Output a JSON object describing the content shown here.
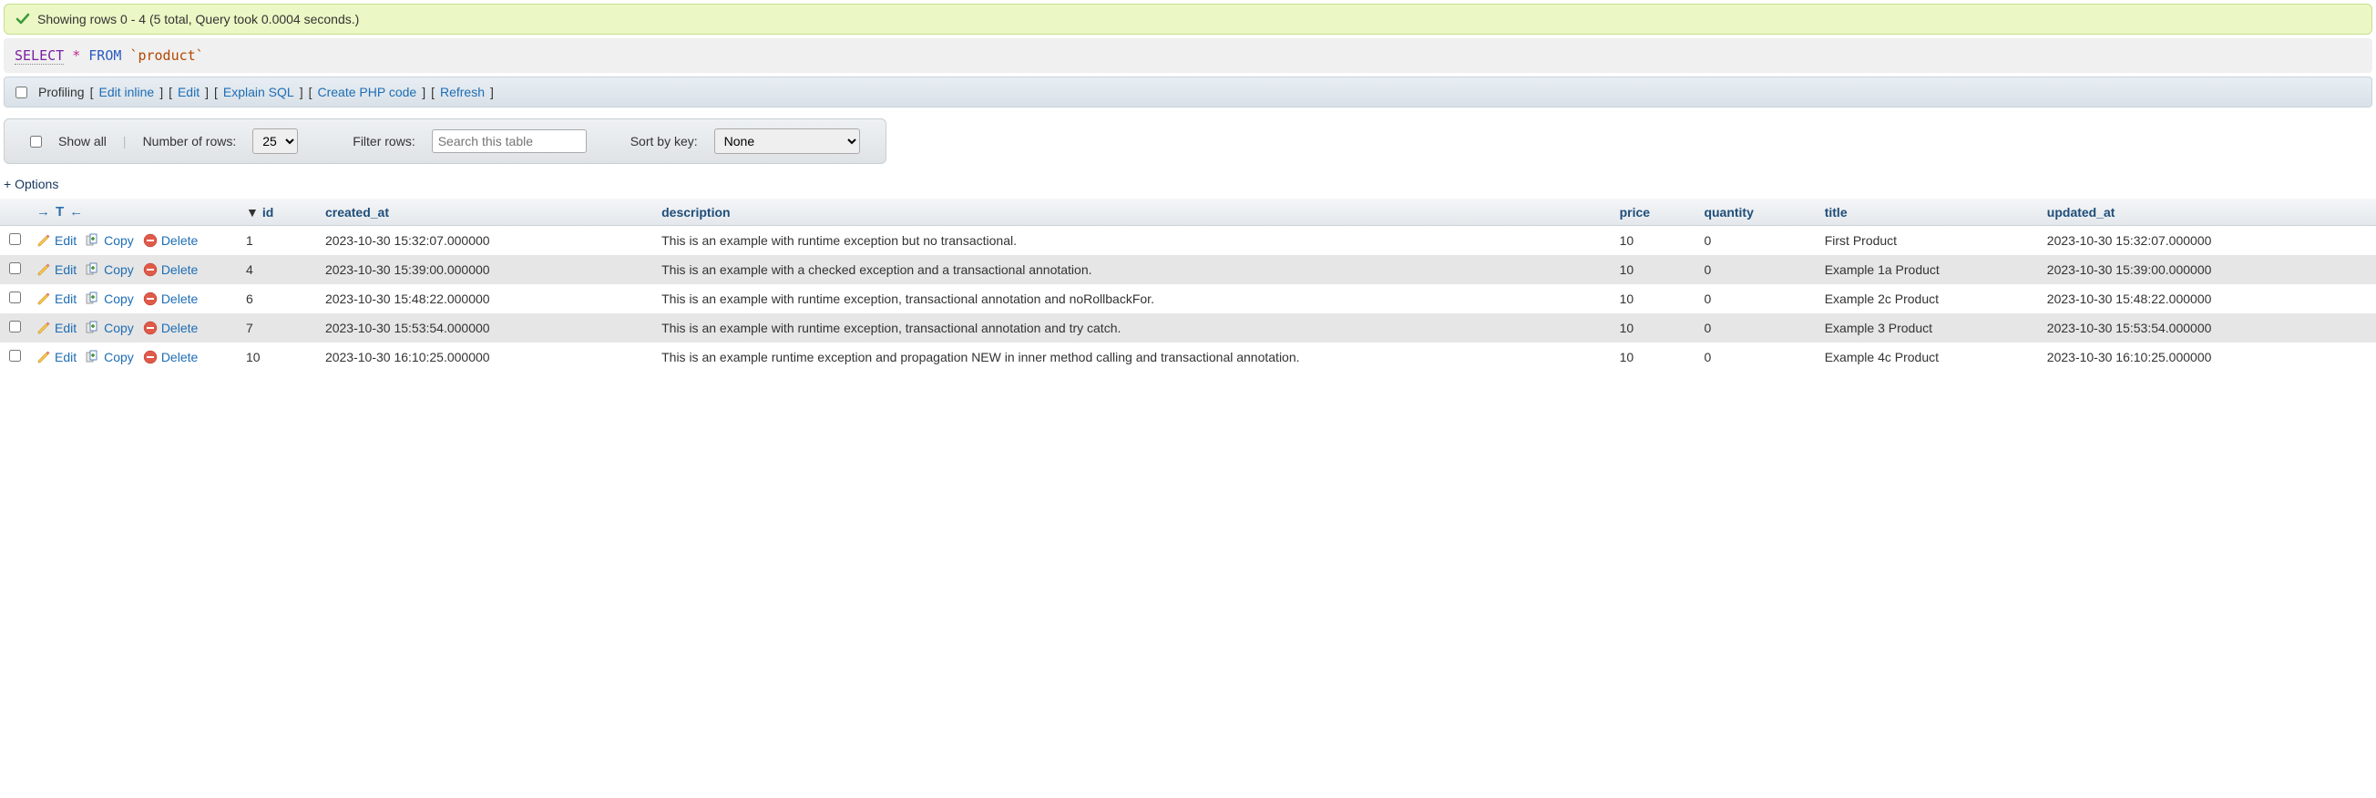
{
  "banner": {
    "text": "Showing rows 0 - 4 (5 total, Query took 0.0004 seconds.)"
  },
  "query": {
    "select": "SELECT",
    "star": "*",
    "from": "FROM",
    "table": "`product`"
  },
  "actions": {
    "profiling": "Profiling",
    "edit_inline": "Edit inline",
    "edit": "Edit",
    "explain": "Explain SQL",
    "php": "Create PHP code",
    "refresh": "Refresh"
  },
  "controls": {
    "show_all": "Show all",
    "num_rows_label": "Number of rows:",
    "num_rows_value": "25",
    "filter_label": "Filter rows:",
    "filter_placeholder": "Search this table",
    "sort_label": "Sort by key:",
    "sort_value": "None"
  },
  "options_label": "+ Options",
  "row_action_labels": {
    "edit": "Edit",
    "copy": "Copy",
    "delete": "Delete"
  },
  "columns": [
    {
      "key": "id",
      "label": "id",
      "sorted": true
    },
    {
      "key": "created_at",
      "label": "created_at"
    },
    {
      "key": "description",
      "label": "description"
    },
    {
      "key": "price",
      "label": "price"
    },
    {
      "key": "quantity",
      "label": "quantity"
    },
    {
      "key": "title",
      "label": "title"
    },
    {
      "key": "updated_at",
      "label": "updated_at"
    }
  ],
  "rows": [
    {
      "id": "1",
      "created_at": "2023-10-30 15:32:07.000000",
      "description": "This is an example with runtime exception but no transactional.",
      "price": "10",
      "quantity": "0",
      "title": "First Product",
      "updated_at": "2023-10-30 15:32:07.000000"
    },
    {
      "id": "4",
      "created_at": "2023-10-30 15:39:00.000000",
      "description": "This is an example with a checked exception and a transactional annotation.",
      "price": "10",
      "quantity": "0",
      "title": "Example 1a Product",
      "updated_at": "2023-10-30 15:39:00.000000"
    },
    {
      "id": "6",
      "created_at": "2023-10-30 15:48:22.000000",
      "description": "This is an example with runtime exception, transactional annotation and noRollbackFor.",
      "price": "10",
      "quantity": "0",
      "title": "Example 2c Product",
      "updated_at": "2023-10-30 15:48:22.000000"
    },
    {
      "id": "7",
      "created_at": "2023-10-30 15:53:54.000000",
      "description": "This is an example with runtime exception, transactional annotation and try catch.",
      "price": "10",
      "quantity": "0",
      "title": "Example 3 Product",
      "updated_at": "2023-10-30 15:53:54.000000"
    },
    {
      "id": "10",
      "created_at": "2023-10-30 16:10:25.000000",
      "description": "This is an example runtime exception and propagation NEW in inner method calling and transactional annotation.",
      "price": "10",
      "quantity": "0",
      "title": "Example 4c Product",
      "updated_at": "2023-10-30 16:10:25.000000"
    }
  ],
  "colors": {
    "banner_bg": "#ebf7c4",
    "link": "#1d6db5",
    "header_text": "#1f4e79",
    "row_odd": "#e6e6e6"
  }
}
